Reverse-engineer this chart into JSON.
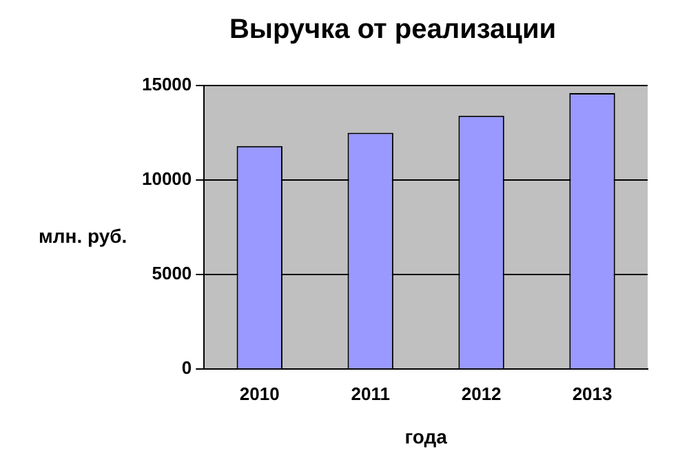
{
  "chart_data": {
    "type": "bar",
    "title": "Выручка от реализации",
    "xlabel": "года",
    "ylabel": "млн. руб.",
    "categories": [
      "2010",
      "2011",
      "2012",
      "2013"
    ],
    "series": [
      {
        "color": "#9999ff",
        "values": [
          11800,
          12500,
          13400,
          14600
        ]
      }
    ],
    "ylim": [
      0,
      15000
    ],
    "yticks": [
      0,
      5000,
      10000,
      15000
    ],
    "grid": "y",
    "legend": false
  }
}
